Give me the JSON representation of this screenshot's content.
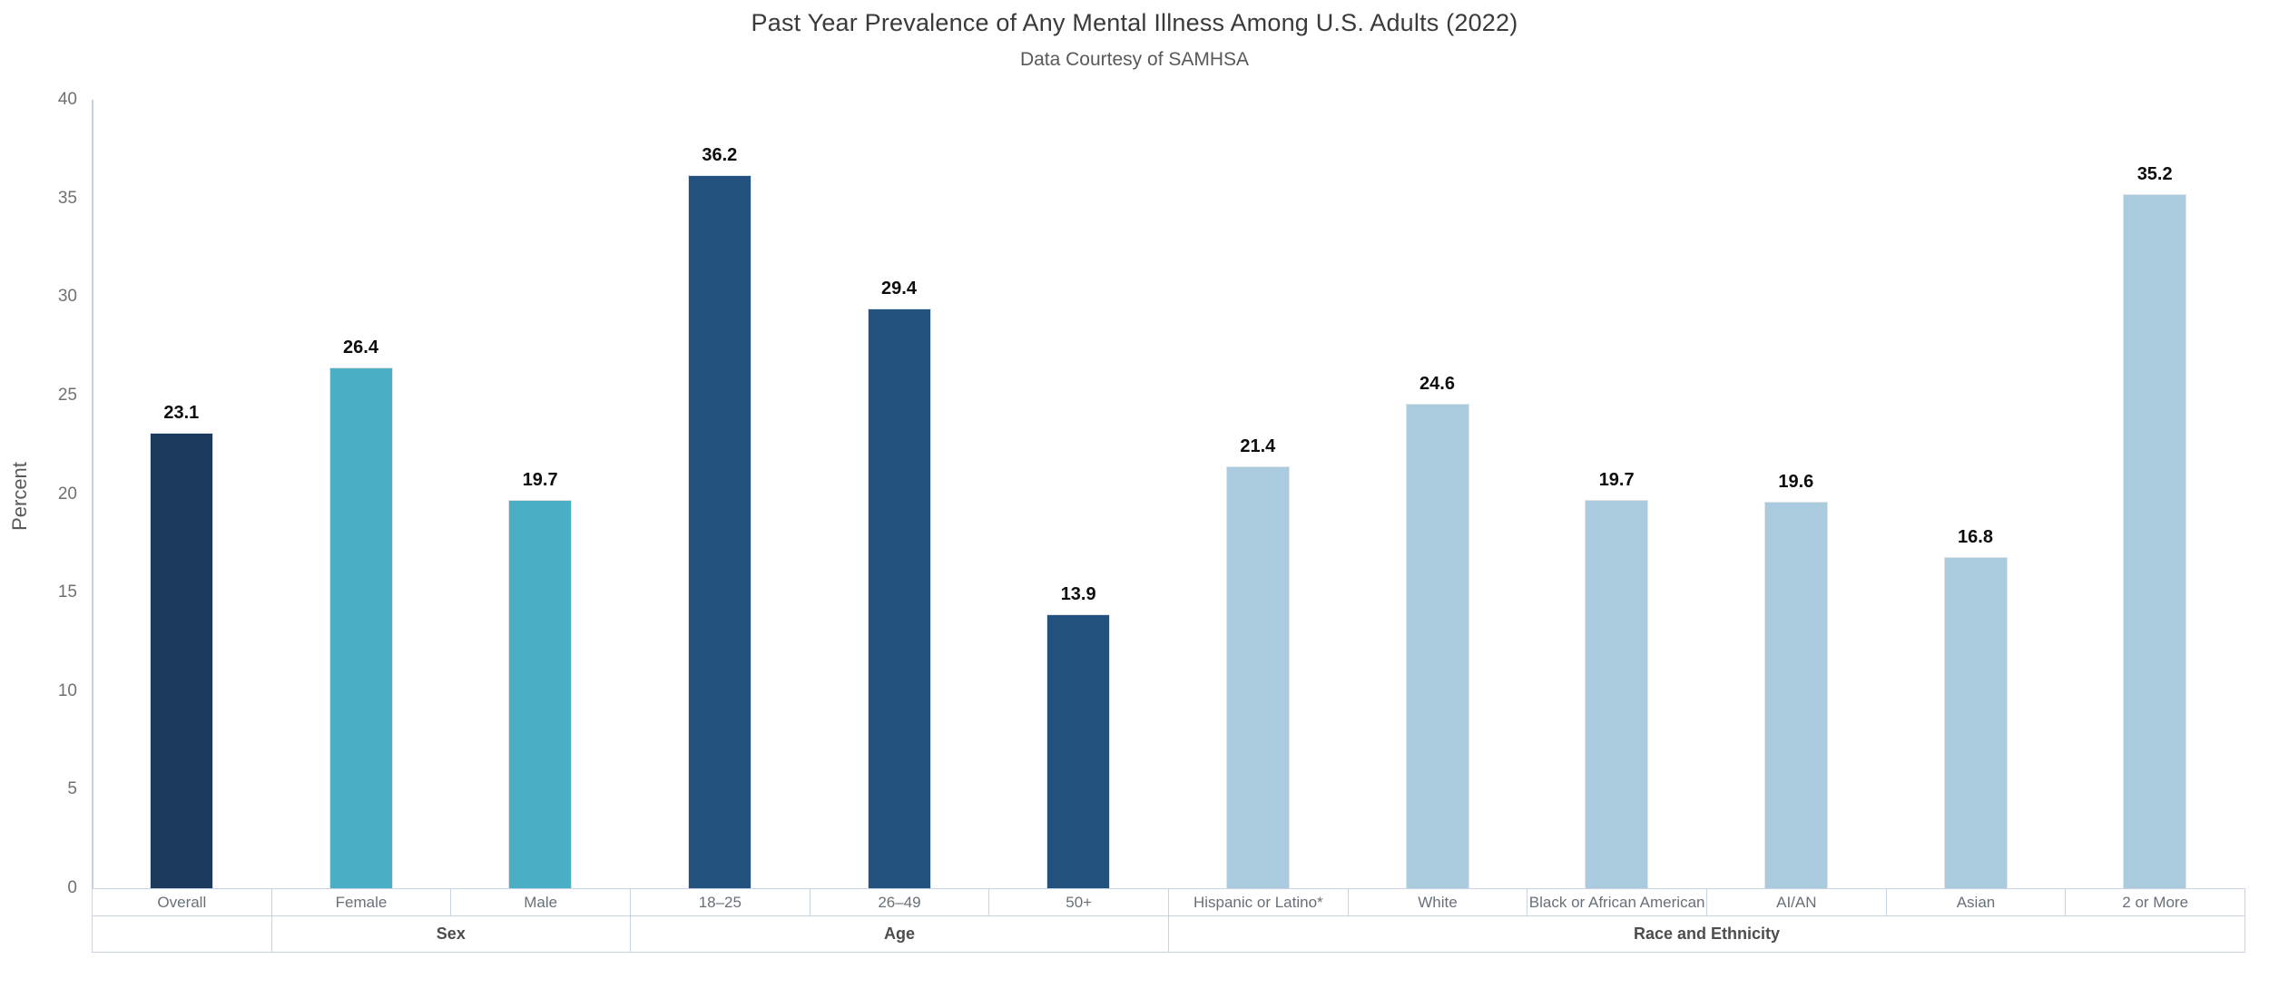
{
  "title": "Past Year Prevalence of Any Mental Illness Among U.S. Adults (2022)",
  "subtitle": "Data Courtesy of SAMHSA",
  "y_axis": {
    "label": "Percent",
    "ticks": [
      0,
      5,
      10,
      15,
      20,
      25,
      30,
      35,
      40
    ],
    "min": 0,
    "max": 40
  },
  "colors": {
    "overall": "#1c3a5e",
    "sex": "#4aaec5",
    "age": "#24527e",
    "race": "#a9cbdd",
    "axis_line": "#c2d0e4",
    "table_border": "#c8d4e4"
  },
  "chart_data": {
    "type": "bar",
    "title": "Past Year Prevalence of Any Mental Illness Among U.S. Adults (2022)",
    "subtitle": "Data Courtesy of SAMHSA",
    "xlabel": "",
    "ylabel": "Percent",
    "ylim": [
      0,
      40
    ],
    "grid": false,
    "legend": "none",
    "categories": [
      "Overall",
      "Female",
      "Male",
      "18–25",
      "26–49",
      "50+",
      "Hispanic or Latino*",
      "White",
      "Black or African American",
      "AI/AN",
      "Asian",
      "2 or More"
    ],
    "values": [
      23.1,
      26.4,
      19.7,
      36.2,
      29.4,
      13.9,
      21.4,
      24.6,
      19.7,
      19.6,
      16.8,
      35.2
    ],
    "value_labels": [
      "23.1",
      "26.4",
      "19.7",
      "36.2",
      "29.4",
      "13.9",
      "21.4",
      "24.6",
      "19.7",
      "19.6",
      "16.8",
      "35.2"
    ],
    "bar_color_keys": [
      "overall",
      "sex",
      "sex",
      "age",
      "age",
      "age",
      "race",
      "race",
      "race",
      "race",
      "race",
      "race"
    ],
    "groups": [
      {
        "label": "",
        "span": 1
      },
      {
        "label": "Sex",
        "span": 2
      },
      {
        "label": "Age",
        "span": 3
      },
      {
        "label": "Race and Ethnicity",
        "span": 6
      }
    ]
  }
}
